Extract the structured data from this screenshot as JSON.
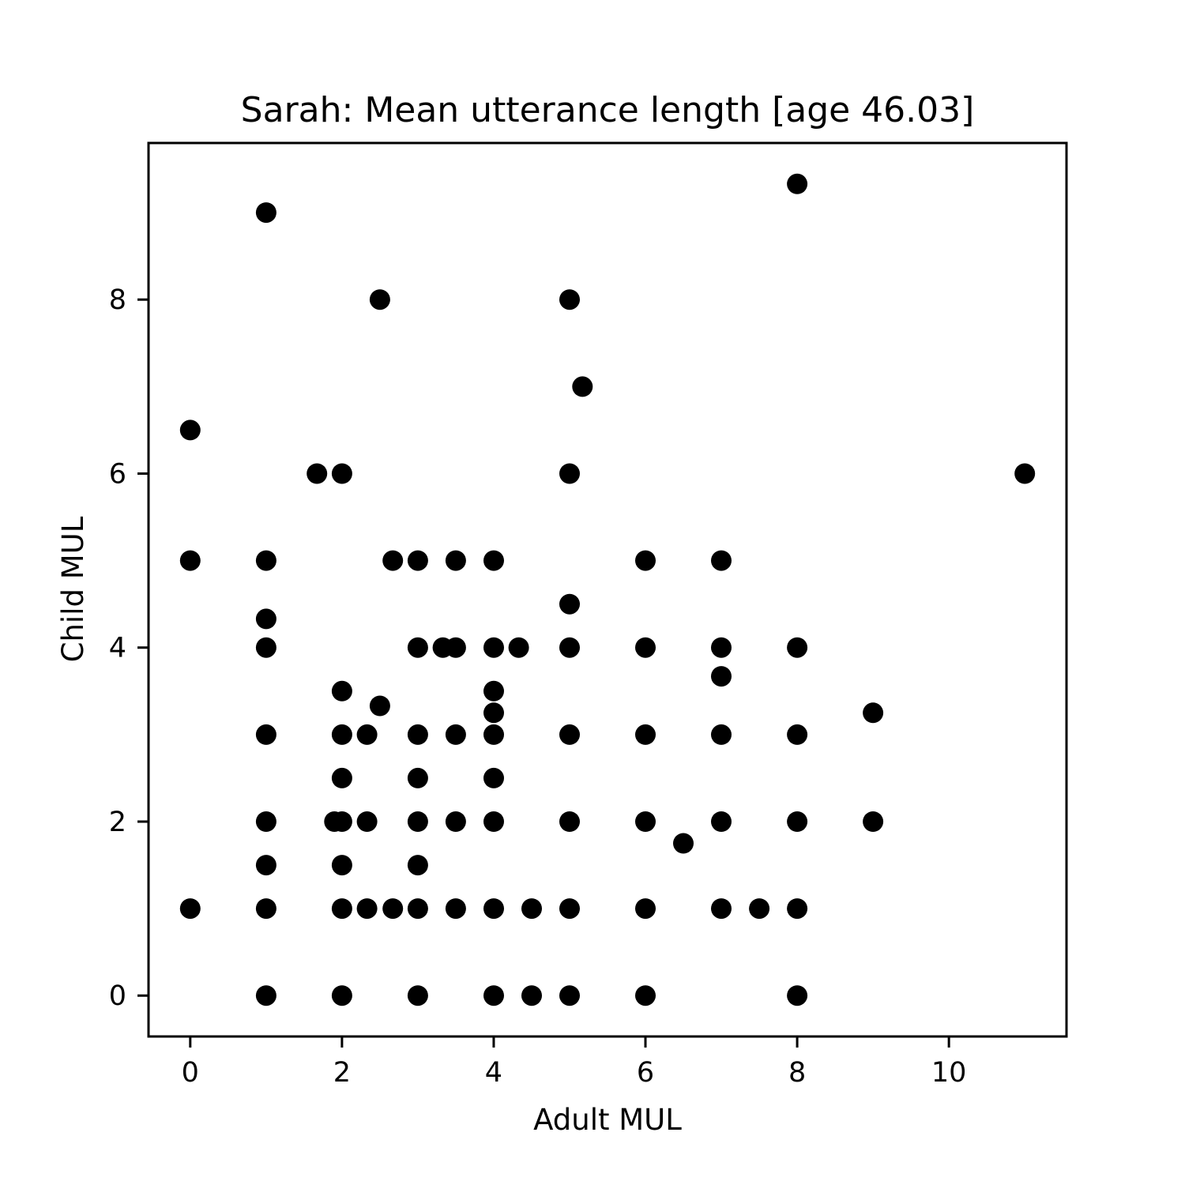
{
  "chart_data": {
    "type": "scatter",
    "title": "Sarah: Mean utterance length [age 46.03]",
    "xlabel": "Adult MUL",
    "ylabel": "Child MUL",
    "xlim": [
      -0.55,
      11.55
    ],
    "ylim": [
      -0.47,
      9.8
    ],
    "xticks": [
      0,
      2,
      4,
      6,
      8,
      10
    ],
    "yticks": [
      0,
      2,
      4,
      6,
      8
    ],
    "grid": false,
    "marker_color": "#000000",
    "points": [
      [
        0,
        6.5
      ],
      [
        0,
        5
      ],
      [
        0,
        1
      ],
      [
        1,
        9
      ],
      [
        1,
        5
      ],
      [
        1,
        4.33
      ],
      [
        1,
        4
      ],
      [
        1,
        3
      ],
      [
        1,
        2
      ],
      [
        1,
        1.5
      ],
      [
        1,
        1
      ],
      [
        1,
        0
      ],
      [
        1.67,
        6
      ],
      [
        1.9,
        2
      ],
      [
        2,
        6
      ],
      [
        2,
        3.5
      ],
      [
        2,
        3
      ],
      [
        2,
        2.5
      ],
      [
        2,
        2
      ],
      [
        2,
        1.5
      ],
      [
        2,
        1
      ],
      [
        2,
        0
      ],
      [
        2.33,
        3
      ],
      [
        2.33,
        2
      ],
      [
        2.33,
        1
      ],
      [
        2.5,
        8
      ],
      [
        2.5,
        3.33
      ],
      [
        2.67,
        5
      ],
      [
        2.67,
        1
      ],
      [
        3,
        5
      ],
      [
        3,
        4
      ],
      [
        3,
        3
      ],
      [
        3,
        2.5
      ],
      [
        3,
        2
      ],
      [
        3,
        1.5
      ],
      [
        3,
        1
      ],
      [
        3,
        0
      ],
      [
        3.33,
        4
      ],
      [
        3.5,
        5
      ],
      [
        3.5,
        4
      ],
      [
        3.5,
        3
      ],
      [
        3.5,
        2
      ],
      [
        3.5,
        1
      ],
      [
        4,
        5
      ],
      [
        4,
        4
      ],
      [
        4,
        3.5
      ],
      [
        4,
        3.25
      ],
      [
        4,
        3
      ],
      [
        4,
        2.5
      ],
      [
        4,
        2
      ],
      [
        4,
        1
      ],
      [
        4,
        0
      ],
      [
        4.33,
        4
      ],
      [
        4.5,
        1
      ],
      [
        4.5,
        0
      ],
      [
        5,
        8
      ],
      [
        5,
        6
      ],
      [
        5,
        4.5
      ],
      [
        5,
        4
      ],
      [
        5,
        3
      ],
      [
        5,
        2
      ],
      [
        5,
        1
      ],
      [
        5,
        0
      ],
      [
        5.17,
        7
      ],
      [
        6,
        5
      ],
      [
        6,
        4
      ],
      [
        6,
        3
      ],
      [
        6,
        2
      ],
      [
        6,
        1
      ],
      [
        6,
        0
      ],
      [
        6.5,
        1.75
      ],
      [
        7,
        5
      ],
      [
        7,
        4
      ],
      [
        7,
        3.67
      ],
      [
        7,
        3
      ],
      [
        7,
        2
      ],
      [
        7,
        1
      ],
      [
        7.5,
        1
      ],
      [
        8,
        9.33
      ],
      [
        8,
        4
      ],
      [
        8,
        3
      ],
      [
        8,
        2
      ],
      [
        8,
        1
      ],
      [
        8,
        0
      ],
      [
        9,
        3.25
      ],
      [
        9,
        2
      ],
      [
        11,
        6
      ]
    ]
  }
}
